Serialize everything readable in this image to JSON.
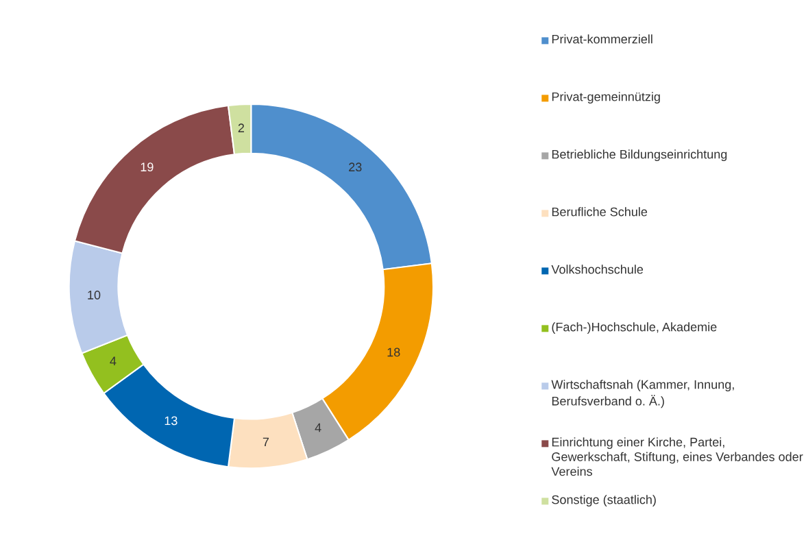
{
  "chart_data": {
    "type": "donut",
    "categories": [
      "Privat-kommerziell",
      "Privat-gemeinnützig",
      "Betriebliche Bildungseinrichtung",
      "Berufliche Schule",
      "Volkshochschule",
      "(Fach-)Hochschule, Akademie",
      "Wirtschaftsnah (Kammer, Innung, Berufsverband o. Ä.)",
      "Einrichtung einer Kirche, Partei, Gewerkschaft, Stiftung, eines Verbandes oder Vereins",
      "Sonstige (staatlich)"
    ],
    "values": [
      23,
      18,
      4,
      7,
      13,
      4,
      10,
      19,
      2
    ],
    "colors": [
      "#4f8fcd",
      "#f39c00",
      "#a6a6a6",
      "#fde0bf",
      "#0066b1",
      "#93c01f",
      "#b9cbea",
      "#8a4a4a",
      "#cfe0a0"
    ],
    "data_labels": true,
    "legend": "right"
  }
}
